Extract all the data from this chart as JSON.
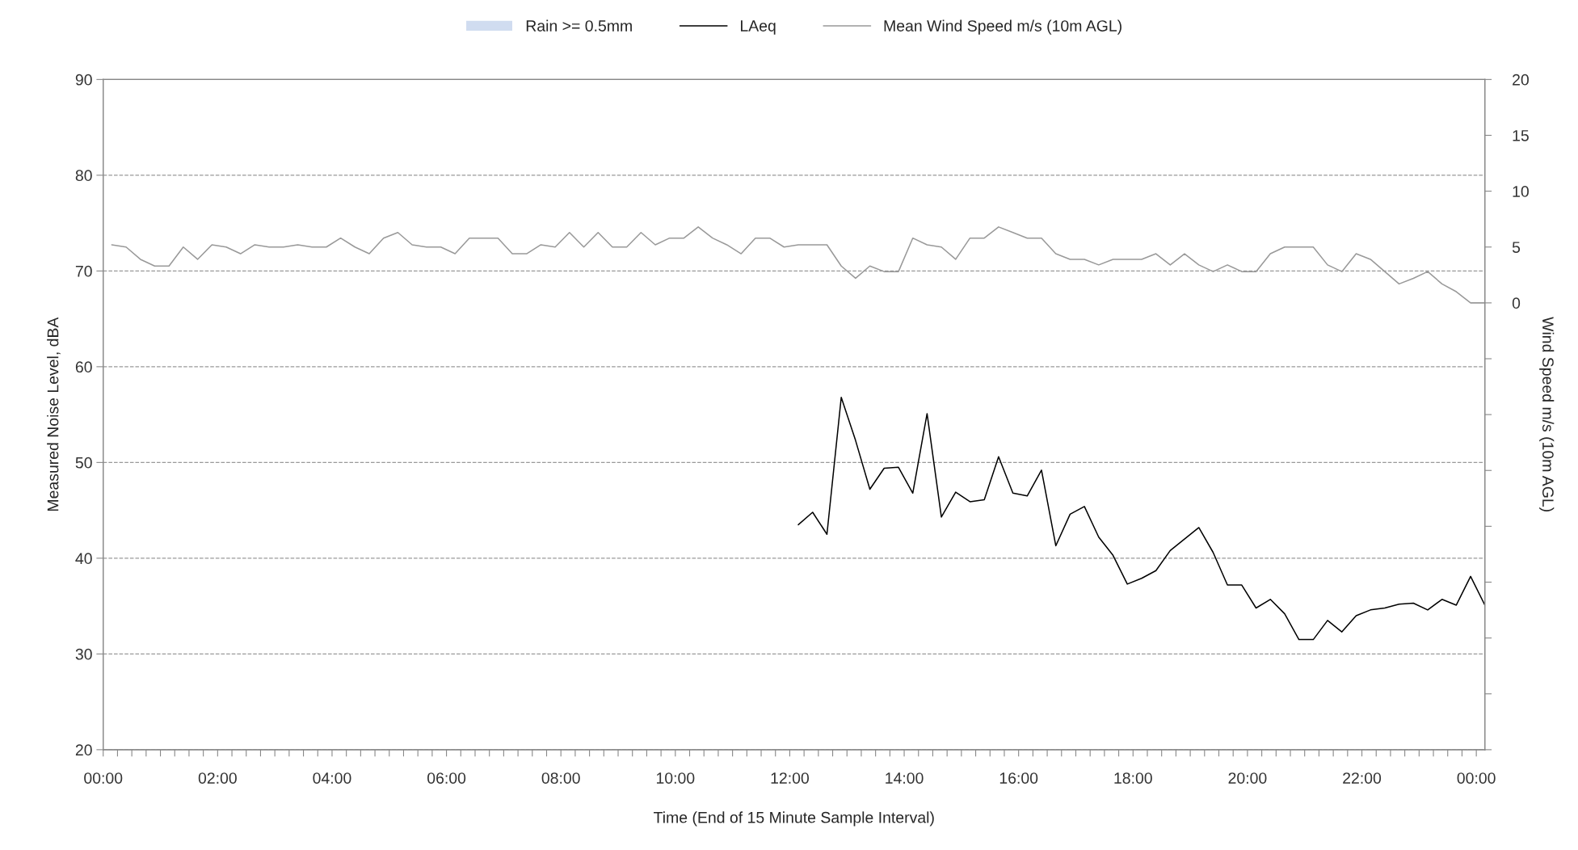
{
  "chart_data": {
    "type": "line",
    "xlabel": "Time (End of 15 Minute Sample Interval)",
    "ylabel": "Measured Noise Level, dBA",
    "y2label": "Wind Speed m/s (10m AGL)",
    "x": [
      0.15,
      0.4,
      0.65,
      0.9,
      1.15,
      1.4,
      1.65,
      1.9,
      2.15,
      2.4,
      2.65,
      2.9,
      3.15,
      3.4,
      3.65,
      3.9,
      4.15,
      4.4,
      4.65,
      4.9,
      5.15,
      5.4,
      5.65,
      5.9,
      6.15,
      6.4,
      6.65,
      6.9,
      7.15,
      7.4,
      7.65,
      7.9,
      8.15,
      8.4,
      8.65,
      8.9,
      9.15,
      9.4,
      9.65,
      9.9,
      10.15,
      10.4,
      10.65,
      10.9,
      11.15,
      11.4,
      11.65,
      11.9,
      12.15,
      12.4,
      12.65,
      12.9,
      13.15,
      13.4,
      13.65,
      13.9,
      14.15,
      14.4,
      14.65,
      14.9,
      15.15,
      15.4,
      15.65,
      15.9,
      16.15,
      16.4,
      16.65,
      16.9,
      17.15,
      17.4,
      17.65,
      17.9,
      18.15,
      18.4,
      18.65,
      18.9,
      19.15,
      19.4,
      19.65,
      19.9,
      20.15,
      20.4,
      20.65,
      20.9,
      21.15,
      21.4,
      21.65,
      21.9,
      22.15,
      22.4,
      22.65,
      22.9,
      23.15,
      23.4,
      23.65,
      23.9,
      24.15
    ],
    "series": [
      {
        "name": "Rain >= 0.5mm",
        "type": "bar",
        "color": "#d0dcf0",
        "values": [
          null,
          null,
          null,
          null,
          null,
          null,
          null,
          null,
          null,
          null,
          null,
          null,
          null,
          null,
          null,
          null,
          null,
          null,
          null,
          null,
          null,
          null,
          null,
          null,
          null,
          null,
          null,
          null,
          null,
          null,
          null,
          null,
          null,
          null,
          null,
          null,
          null,
          null,
          null,
          null,
          null,
          null,
          null,
          null,
          null,
          null,
          null,
          null,
          null,
          null,
          null,
          null,
          null,
          null,
          null,
          null,
          null,
          null,
          null,
          null,
          null,
          null,
          null,
          null,
          null,
          null,
          null,
          null,
          null,
          null,
          null,
          null,
          null,
          null,
          null,
          null,
          null,
          null,
          null,
          null,
          null,
          null,
          null,
          null,
          null,
          null,
          null,
          null,
          null,
          null,
          null,
          null,
          null,
          null,
          null,
          null,
          null
        ]
      },
      {
        "name": "LAeq",
        "color": "#000000",
        "values": [
          null,
          null,
          null,
          null,
          null,
          null,
          null,
          null,
          null,
          null,
          null,
          null,
          null,
          null,
          null,
          null,
          null,
          null,
          null,
          null,
          null,
          null,
          null,
          null,
          null,
          null,
          null,
          null,
          null,
          null,
          null,
          null,
          null,
          null,
          null,
          null,
          null,
          null,
          null,
          null,
          null,
          null,
          null,
          null,
          null,
          null,
          null,
          null,
          43.5,
          44.8,
          42.5,
          56.8,
          52.3,
          47.2,
          49.4,
          49.5,
          46.8,
          55.1,
          44.3,
          46.9,
          45.9,
          46.1,
          50.6,
          46.8,
          46.5,
          49.2,
          41.3,
          44.6,
          45.4,
          42.2,
          40.3,
          37.3,
          37.9,
          38.7,
          40.8,
          42.0,
          43.2,
          40.6,
          37.2,
          37.2,
          34.8,
          35.7,
          34.2,
          31.5,
          31.5,
          33.5,
          32.3,
          34.0,
          34.6,
          34.8,
          35.2,
          35.3,
          34.6,
          35.7,
          35.1,
          38.1,
          35.1
        ]
      },
      {
        "name": "Mean Wind Speed m/s (10m AGL)",
        "axis": "y2",
        "color": "#999999",
        "values": [
          5.2,
          5.0,
          3.9,
          3.3,
          3.3,
          5.0,
          3.9,
          5.2,
          5.0,
          4.4,
          5.2,
          5.0,
          5.0,
          5.2,
          5.0,
          5.0,
          5.8,
          5.0,
          4.4,
          5.8,
          6.3,
          5.2,
          5.0,
          5.0,
          4.4,
          5.8,
          5.8,
          5.8,
          4.4,
          4.4,
          5.2,
          5.0,
          6.3,
          5.0,
          6.3,
          5.0,
          5.0,
          6.3,
          5.2,
          5.8,
          5.8,
          6.8,
          5.8,
          5.2,
          4.4,
          5.8,
          5.8,
          5.0,
          5.2,
          5.2,
          5.2,
          3.3,
          2.2,
          3.3,
          2.8,
          2.8,
          5.8,
          5.2,
          5.0,
          3.9,
          5.8,
          5.8,
          6.8,
          6.3,
          5.8,
          5.8,
          4.4,
          3.9,
          3.9,
          3.4,
          3.9,
          3.9,
          3.9,
          4.4,
          3.4,
          4.4,
          3.4,
          2.8,
          3.4,
          2.8,
          2.8,
          4.4,
          5.0,
          5.0,
          5.0,
          3.4,
          2.8,
          4.4,
          3.9,
          2.8,
          1.7,
          2.2,
          2.8,
          1.7,
          1.0,
          0,
          0
        ]
      }
    ],
    "xlim": [
      0,
      24.15
    ],
    "xticks": [
      {
        "value": 0,
        "label": "00:00"
      },
      {
        "value": 0.25,
        "label": null
      },
      {
        "value": 0.5,
        "label": null
      },
      {
        "value": 0.75,
        "label": null
      },
      {
        "value": 1,
        "label": null
      },
      {
        "value": 1.25,
        "label": null
      },
      {
        "value": 1.5,
        "label": null
      },
      {
        "value": 1.75,
        "label": null
      },
      {
        "value": 2,
        "label": "02:00"
      },
      {
        "value": 2.25,
        "label": null
      },
      {
        "value": 2.5,
        "label": null
      },
      {
        "value": 2.75,
        "label": null
      },
      {
        "value": 3,
        "label": null
      },
      {
        "value": 3.25,
        "label": null
      },
      {
        "value": 3.5,
        "label": null
      },
      {
        "value": 3.75,
        "label": null
      },
      {
        "value": 4,
        "label": "04:00"
      },
      {
        "value": 4.25,
        "label": null
      },
      {
        "value": 4.5,
        "label": null
      },
      {
        "value": 4.75,
        "label": null
      },
      {
        "value": 5,
        "label": null
      },
      {
        "value": 5.25,
        "label": null
      },
      {
        "value": 5.5,
        "label": null
      },
      {
        "value": 5.75,
        "label": null
      },
      {
        "value": 6,
        "label": "06:00"
      },
      {
        "value": 6.25,
        "label": null
      },
      {
        "value": 6.5,
        "label": null
      },
      {
        "value": 6.75,
        "label": null
      },
      {
        "value": 7,
        "label": null
      },
      {
        "value": 7.25,
        "label": null
      },
      {
        "value": 7.5,
        "label": null
      },
      {
        "value": 7.75,
        "label": null
      },
      {
        "value": 8,
        "label": "08:00"
      },
      {
        "value": 8.25,
        "label": null
      },
      {
        "value": 8.5,
        "label": null
      },
      {
        "value": 8.75,
        "label": null
      },
      {
        "value": 9,
        "label": null
      },
      {
        "value": 9.25,
        "label": null
      },
      {
        "value": 9.5,
        "label": null
      },
      {
        "value": 9.75,
        "label": null
      },
      {
        "value": 10,
        "label": "10:00"
      },
      {
        "value": 10.25,
        "label": null
      },
      {
        "value": 10.5,
        "label": null
      },
      {
        "value": 10.75,
        "label": null
      },
      {
        "value": 11,
        "label": null
      },
      {
        "value": 11.25,
        "label": null
      },
      {
        "value": 11.5,
        "label": null
      },
      {
        "value": 11.75,
        "label": null
      },
      {
        "value": 12,
        "label": "12:00"
      },
      {
        "value": 12.25,
        "label": null
      },
      {
        "value": 12.5,
        "label": null
      },
      {
        "value": 12.75,
        "label": null
      },
      {
        "value": 13,
        "label": null
      },
      {
        "value": 13.25,
        "label": null
      },
      {
        "value": 13.5,
        "label": null
      },
      {
        "value": 13.75,
        "label": null
      },
      {
        "value": 14,
        "label": "14:00"
      },
      {
        "value": 14.25,
        "label": null
      },
      {
        "value": 14.5,
        "label": null
      },
      {
        "value": 14.75,
        "label": null
      },
      {
        "value": 15,
        "label": null
      },
      {
        "value": 15.25,
        "label": null
      },
      {
        "value": 15.5,
        "label": null
      },
      {
        "value": 15.75,
        "label": null
      },
      {
        "value": 16,
        "label": "16:00"
      },
      {
        "value": 16.25,
        "label": null
      },
      {
        "value": 16.5,
        "label": null
      },
      {
        "value": 16.75,
        "label": null
      },
      {
        "value": 17,
        "label": null
      },
      {
        "value": 17.25,
        "label": null
      },
      {
        "value": 17.5,
        "label": null
      },
      {
        "value": 17.75,
        "label": null
      },
      {
        "value": 18,
        "label": "18:00"
      },
      {
        "value": 18.25,
        "label": null
      },
      {
        "value": 18.5,
        "label": null
      },
      {
        "value": 18.75,
        "label": null
      },
      {
        "value": 19,
        "label": null
      },
      {
        "value": 19.25,
        "label": null
      },
      {
        "value": 19.5,
        "label": null
      },
      {
        "value": 19.75,
        "label": null
      },
      {
        "value": 20,
        "label": "20:00"
      },
      {
        "value": 20.25,
        "label": null
      },
      {
        "value": 20.5,
        "label": null
      },
      {
        "value": 20.75,
        "label": null
      },
      {
        "value": 21,
        "label": null
      },
      {
        "value": 21.25,
        "label": null
      },
      {
        "value": 21.5,
        "label": null
      },
      {
        "value": 21.75,
        "label": null
      },
      {
        "value": 22,
        "label": "22:00"
      },
      {
        "value": 22.25,
        "label": null
      },
      {
        "value": 22.5,
        "label": null
      },
      {
        "value": 22.75,
        "label": null
      },
      {
        "value": 23,
        "label": null
      },
      {
        "value": 23.25,
        "label": null
      },
      {
        "value": 23.5,
        "label": null
      },
      {
        "value": 23.75,
        "label": null
      },
      {
        "value": 24,
        "label": "00:00"
      }
    ],
    "ylim": [
      20,
      90
    ],
    "yticks": [
      20,
      30,
      40,
      50,
      60,
      70,
      80,
      90
    ],
    "y2lim": [
      -40,
      20
    ],
    "y2ticks": [
      {
        "value": -40,
        "label": null
      },
      {
        "value": -35,
        "label": null
      },
      {
        "value": -30,
        "label": null
      },
      {
        "value": -25,
        "label": null
      },
      {
        "value": -20,
        "label": null
      },
      {
        "value": -15,
        "label": null
      },
      {
        "value": -10,
        "label": null
      },
      {
        "value": -5,
        "label": null
      },
      0,
      5,
      10,
      15,
      20
    ],
    "grid": "y",
    "legend": "top",
    "line_style": "solid"
  }
}
